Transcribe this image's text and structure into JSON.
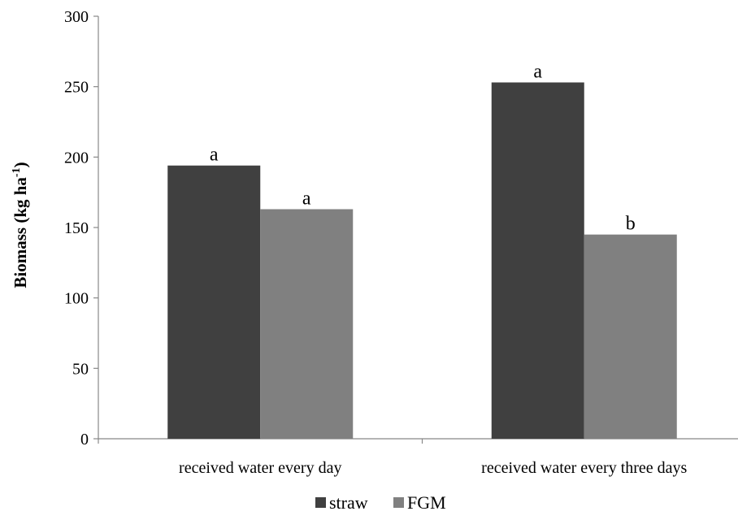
{
  "chart_data": {
    "type": "bar",
    "categories": [
      "received water every day",
      "received water every three days"
    ],
    "series": [
      {
        "name": "straw",
        "values": [
          194,
          253
        ],
        "labels": [
          "a",
          "a"
        ],
        "color": "#404040"
      },
      {
        "name": "FGM",
        "values": [
          163,
          145
        ],
        "labels": [
          "a",
          "b"
        ],
        "color": "#808080"
      }
    ],
    "ylabel": {
      "main": "Biomass (kg ha",
      "sup": "-1",
      "close": ")"
    },
    "ylim": [
      0,
      300
    ],
    "yticks": [
      "0",
      "50",
      "100",
      "150",
      "200",
      "250",
      "300"
    ],
    "grid": false,
    "legend": "bottom"
  }
}
